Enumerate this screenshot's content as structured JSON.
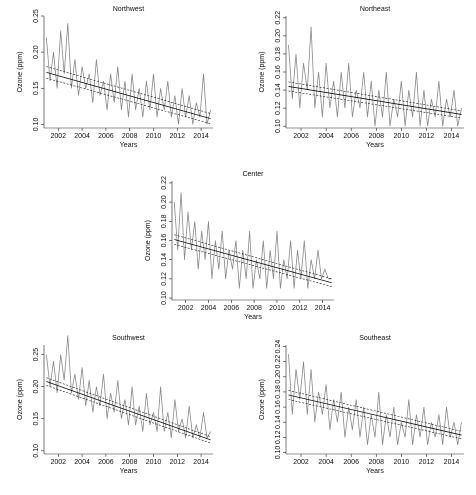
{
  "chart_data": [
    {
      "type": "line",
      "title": "Northwest",
      "xlabel": "Years",
      "ylabel": "Ozone (ppm)",
      "xlim": [
        2000.8,
        2015
      ],
      "ylim": [
        0.095,
        0.25
      ],
      "xticks": [
        "2002",
        "2004",
        "2006",
        "2008",
        "2010",
        "2012",
        "2014"
      ],
      "yticks": [
        "0.10",
        "0.15",
        "0.20",
        "0.25"
      ],
      "series": [
        {
          "x": [
            2001.0,
            2001.3,
            2001.6,
            2001.9,
            2002.2,
            2002.5,
            2002.8,
            2003.1,
            2003.4,
            2003.7,
            2004.0,
            2004.3,
            2004.6,
            2004.9,
            2005.2,
            2005.5,
            2005.8,
            2006.1,
            2006.4,
            2006.7,
            2007.0,
            2007.3,
            2007.6,
            2007.9,
            2008.2,
            2008.5,
            2008.8,
            2009.1,
            2009.4,
            2009.7,
            2010.0,
            2010.3,
            2010.6,
            2010.9,
            2011.2,
            2011.5,
            2011.8,
            2012.1,
            2012.4,
            2012.7,
            2013.0,
            2013.3,
            2013.6,
            2013.9,
            2014.2,
            2014.5,
            2014.8
          ],
          "y": [
            0.22,
            0.16,
            0.2,
            0.15,
            0.23,
            0.17,
            0.24,
            0.15,
            0.19,
            0.14,
            0.18,
            0.15,
            0.17,
            0.13,
            0.19,
            0.14,
            0.16,
            0.12,
            0.17,
            0.13,
            0.18,
            0.12,
            0.16,
            0.11,
            0.17,
            0.12,
            0.15,
            0.11,
            0.16,
            0.12,
            0.17,
            0.11,
            0.15,
            0.12,
            0.16,
            0.11,
            0.14,
            0.1,
            0.15,
            0.11,
            0.14,
            0.1,
            0.13,
            0.11,
            0.17,
            0.1,
            0.12
          ]
        }
      ],
      "trend": [
        [
          2001.0,
          0.172
        ],
        [
          2014.8,
          0.108
        ]
      ],
      "ci_upper": [
        [
          2001.0,
          0.18
        ],
        [
          2014.8,
          0.115
        ]
      ],
      "ci_lower": [
        [
          2001.0,
          0.164
        ],
        [
          2014.8,
          0.101
        ]
      ]
    },
    {
      "type": "line",
      "title": "Northeast",
      "xlabel": "Years",
      "ylabel": "Ozone (ppm)",
      "xlim": [
        2000.8,
        2015
      ],
      "ylim": [
        0.098,
        0.222
      ],
      "xticks": [
        "2002",
        "2004",
        "2006",
        "2008",
        "2010",
        "2012",
        "2014"
      ],
      "yticks": [
        "0.10",
        "0.12",
        "0.14",
        "0.16",
        "0.18",
        "0.20",
        "0.22"
      ],
      "series": [
        {
          "x": [
            2001.0,
            2001.3,
            2001.6,
            2001.9,
            2002.2,
            2002.5,
            2002.8,
            2003.1,
            2003.4,
            2003.7,
            2004.0,
            2004.3,
            2004.6,
            2004.9,
            2005.2,
            2005.5,
            2005.8,
            2006.1,
            2006.4,
            2006.7,
            2007.0,
            2007.3,
            2007.6,
            2007.9,
            2008.2,
            2008.5,
            2008.8,
            2009.1,
            2009.4,
            2009.7,
            2010.0,
            2010.3,
            2010.6,
            2010.9,
            2011.2,
            2011.5,
            2011.8,
            2012.1,
            2012.4,
            2012.7,
            2013.0,
            2013.3,
            2013.6,
            2013.9,
            2014.2,
            2014.5,
            2014.8
          ],
          "y": [
            0.19,
            0.13,
            0.18,
            0.12,
            0.17,
            0.14,
            0.21,
            0.12,
            0.16,
            0.11,
            0.17,
            0.12,
            0.15,
            0.11,
            0.16,
            0.12,
            0.17,
            0.11,
            0.14,
            0.12,
            0.16,
            0.11,
            0.15,
            0.1,
            0.14,
            0.11,
            0.16,
            0.1,
            0.13,
            0.11,
            0.15,
            0.1,
            0.14,
            0.11,
            0.16,
            0.1,
            0.14,
            0.1,
            0.13,
            0.11,
            0.15,
            0.1,
            0.13,
            0.11,
            0.14,
            0.1,
            0.12
          ]
        }
      ],
      "trend": [
        [
          2001.0,
          0.144
        ],
        [
          2014.8,
          0.113
        ]
      ],
      "ci_upper": [
        [
          2001.0,
          0.149
        ],
        [
          2014.8,
          0.117
        ]
      ],
      "ci_lower": [
        [
          2001.0,
          0.139
        ],
        [
          2014.8,
          0.109
        ]
      ]
    },
    {
      "type": "line",
      "title": "Center",
      "xlabel": "Years",
      "ylabel": "Ozone (ppm)",
      "xlim": [
        2000.8,
        2015
      ],
      "ylim": [
        0.098,
        0.222
      ],
      "xticks": [
        "2002",
        "2004",
        "2006",
        "2008",
        "2010",
        "2012",
        "2014"
      ],
      "yticks": [
        "0.10",
        "0.12",
        "0.14",
        "0.16",
        "0.18",
        "0.20",
        "0.22"
      ],
      "series": [
        {
          "x": [
            2001.0,
            2001.3,
            2001.6,
            2001.9,
            2002.2,
            2002.5,
            2002.8,
            2003.1,
            2003.4,
            2003.7,
            2004.0,
            2004.3,
            2004.6,
            2004.9,
            2005.2,
            2005.5,
            2005.8,
            2006.1,
            2006.4,
            2006.7,
            2007.0,
            2007.3,
            2007.6,
            2007.9,
            2008.2,
            2008.5,
            2008.8,
            2009.1,
            2009.4,
            2009.7,
            2010.0,
            2010.3,
            2010.6,
            2010.9,
            2011.2,
            2011.5,
            2011.8,
            2012.1,
            2012.4,
            2012.7,
            2013.0,
            2013.3,
            2013.6,
            2013.9,
            2014.2,
            2014.5,
            2014.8
          ],
          "y": [
            0.2,
            0.15,
            0.21,
            0.14,
            0.19,
            0.15,
            0.18,
            0.13,
            0.17,
            0.14,
            0.18,
            0.12,
            0.16,
            0.13,
            0.17,
            0.12,
            0.15,
            0.13,
            0.16,
            0.11,
            0.15,
            0.12,
            0.17,
            0.11,
            0.14,
            0.12,
            0.16,
            0.11,
            0.15,
            0.12,
            0.17,
            0.11,
            0.14,
            0.12,
            0.16,
            0.11,
            0.15,
            0.12,
            0.16,
            0.11,
            0.14,
            0.12,
            0.15,
            0.12,
            0.13,
            0.12,
            0.12
          ]
        }
      ],
      "trend": [
        [
          2001.0,
          0.161
        ],
        [
          2014.8,
          0.116
        ]
      ],
      "ci_upper": [
        [
          2001.0,
          0.166
        ],
        [
          2014.8,
          0.12
        ]
      ],
      "ci_lower": [
        [
          2001.0,
          0.156
        ],
        [
          2014.8,
          0.112
        ]
      ]
    },
    {
      "type": "line",
      "title": "Southwest",
      "xlabel": "Years",
      "ylabel": "Ozone (ppm)",
      "xlim": [
        2000.8,
        2015
      ],
      "ylim": [
        0.095,
        0.265
      ],
      "xticks": [
        "2002",
        "2004",
        "2006",
        "2008",
        "2010",
        "2012",
        "2014"
      ],
      "yticks": [
        "0.10",
        "0.15",
        "0.20",
        "0.25"
      ],
      "series": [
        {
          "x": [
            2001.0,
            2001.3,
            2001.6,
            2001.9,
            2002.2,
            2002.5,
            2002.8,
            2003.1,
            2003.4,
            2003.7,
            2004.0,
            2004.3,
            2004.6,
            2004.9,
            2005.2,
            2005.5,
            2005.8,
            2006.1,
            2006.4,
            2006.7,
            2007.0,
            2007.3,
            2007.6,
            2007.9,
            2008.2,
            2008.5,
            2008.8,
            2009.1,
            2009.4,
            2009.7,
            2010.0,
            2010.3,
            2010.6,
            2010.9,
            2011.2,
            2011.5,
            2011.8,
            2012.1,
            2012.4,
            2012.7,
            2013.0,
            2013.3,
            2013.6,
            2013.9,
            2014.2,
            2014.5,
            2014.8
          ],
          "y": [
            0.25,
            0.2,
            0.24,
            0.19,
            0.25,
            0.21,
            0.28,
            0.19,
            0.22,
            0.18,
            0.23,
            0.17,
            0.21,
            0.16,
            0.2,
            0.17,
            0.22,
            0.15,
            0.19,
            0.16,
            0.21,
            0.15,
            0.18,
            0.14,
            0.2,
            0.14,
            0.17,
            0.13,
            0.19,
            0.14,
            0.16,
            0.13,
            0.2,
            0.13,
            0.16,
            0.12,
            0.18,
            0.13,
            0.15,
            0.12,
            0.17,
            0.12,
            0.14,
            0.12,
            0.16,
            0.12,
            0.13
          ]
        }
      ],
      "trend": [
        [
          2001.0,
          0.208
        ],
        [
          2014.8,
          0.117
        ]
      ],
      "ci_upper": [
        [
          2001.0,
          0.214
        ],
        [
          2014.8,
          0.122
        ]
      ],
      "ci_lower": [
        [
          2001.0,
          0.202
        ],
        [
          2014.8,
          0.112
        ]
      ]
    },
    {
      "type": "line",
      "title": "Southeast",
      "xlabel": "Years",
      "ylabel": "Ozone (ppm)",
      "xlim": [
        2000.8,
        2015
      ],
      "ylim": [
        0.098,
        0.242
      ],
      "xticks": [
        "2002",
        "2004",
        "2006",
        "2008",
        "2010",
        "2012",
        "2014"
      ],
      "yticks": [
        "0.10",
        "0.12",
        "0.14",
        "0.16",
        "0.18",
        "0.20",
        "0.22",
        "0.24"
      ],
      "series": [
        {
          "x": [
            2001.0,
            2001.3,
            2001.6,
            2001.9,
            2002.2,
            2002.5,
            2002.8,
            2003.1,
            2003.4,
            2003.7,
            2004.0,
            2004.3,
            2004.6,
            2004.9,
            2005.2,
            2005.5,
            2005.8,
            2006.1,
            2006.4,
            2006.7,
            2007.0,
            2007.3,
            2007.6,
            2007.9,
            2008.2,
            2008.5,
            2008.8,
            2009.1,
            2009.4,
            2009.7,
            2010.0,
            2010.3,
            2010.6,
            2010.9,
            2011.2,
            2011.5,
            2011.8,
            2012.1,
            2012.4,
            2012.7,
            2013.0,
            2013.3,
            2013.6,
            2013.9,
            2014.2,
            2014.5,
            2014.8
          ],
          "y": [
            0.23,
            0.15,
            0.21,
            0.17,
            0.22,
            0.15,
            0.21,
            0.14,
            0.18,
            0.15,
            0.19,
            0.13,
            0.17,
            0.14,
            0.18,
            0.12,
            0.16,
            0.13,
            0.17,
            0.12,
            0.16,
            0.11,
            0.15,
            0.12,
            0.18,
            0.11,
            0.15,
            0.12,
            0.16,
            0.11,
            0.14,
            0.12,
            0.17,
            0.11,
            0.15,
            0.12,
            0.16,
            0.11,
            0.14,
            0.12,
            0.15,
            0.11,
            0.16,
            0.12,
            0.14,
            0.11,
            0.14
          ]
        }
      ],
      "trend": [
        [
          2001.0,
          0.176
        ],
        [
          2014.8,
          0.123
        ]
      ],
      "ci_upper": [
        [
          2001.0,
          0.182
        ],
        [
          2014.8,
          0.128
        ]
      ],
      "ci_lower": [
        [
          2001.0,
          0.17
        ],
        [
          2014.8,
          0.118
        ]
      ]
    }
  ]
}
